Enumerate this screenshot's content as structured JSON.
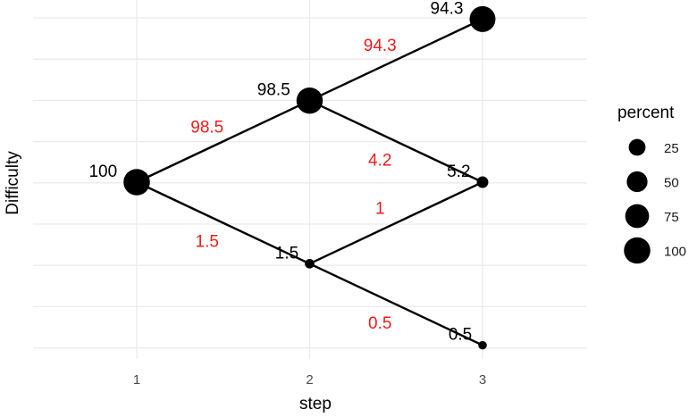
{
  "chart_data": {
    "type": "tree-diagram",
    "xlabel": "step",
    "ylabel": "Difficulty",
    "x_ticks": [
      "1",
      "2",
      "3"
    ],
    "grid": true,
    "nodes": [
      {
        "id": "n1",
        "step": 1,
        "level": 0,
        "label": "100",
        "percent": 100
      },
      {
        "id": "n2a",
        "step": 2,
        "level": 1,
        "label": "98.5",
        "percent": 98.5
      },
      {
        "id": "n2b",
        "step": 2,
        "level": -1,
        "label": "1.5",
        "percent": 1.5
      },
      {
        "id": "n3a",
        "step": 3,
        "level": 2,
        "label": "94.3",
        "percent": 94.3
      },
      {
        "id": "n3b",
        "step": 3,
        "level": 0,
        "label": "5.2",
        "percent": 5.2
      },
      {
        "id": "n3c",
        "step": 3,
        "level": -2,
        "label": "0.5",
        "percent": 0.5
      }
    ],
    "edges": [
      {
        "from": "n1",
        "to": "n2a",
        "label": "98.5"
      },
      {
        "from": "n1",
        "to": "n2b",
        "label": "1.5"
      },
      {
        "from": "n2a",
        "to": "n3a",
        "label": "94.3"
      },
      {
        "from": "n2a",
        "to": "n3b",
        "label": "4.2"
      },
      {
        "from": "n2b",
        "to": "n3b",
        "label": "1"
      },
      {
        "from": "n2b",
        "to": "n3c",
        "label": "0.5"
      }
    ],
    "legend": {
      "title": "percent",
      "position": "right",
      "entries": [
        25,
        50,
        75,
        100
      ]
    },
    "colors": {
      "node": "#000000",
      "edge": "#000000",
      "edge_label": "#ee1c1c",
      "grid": "#ebebeb"
    }
  }
}
